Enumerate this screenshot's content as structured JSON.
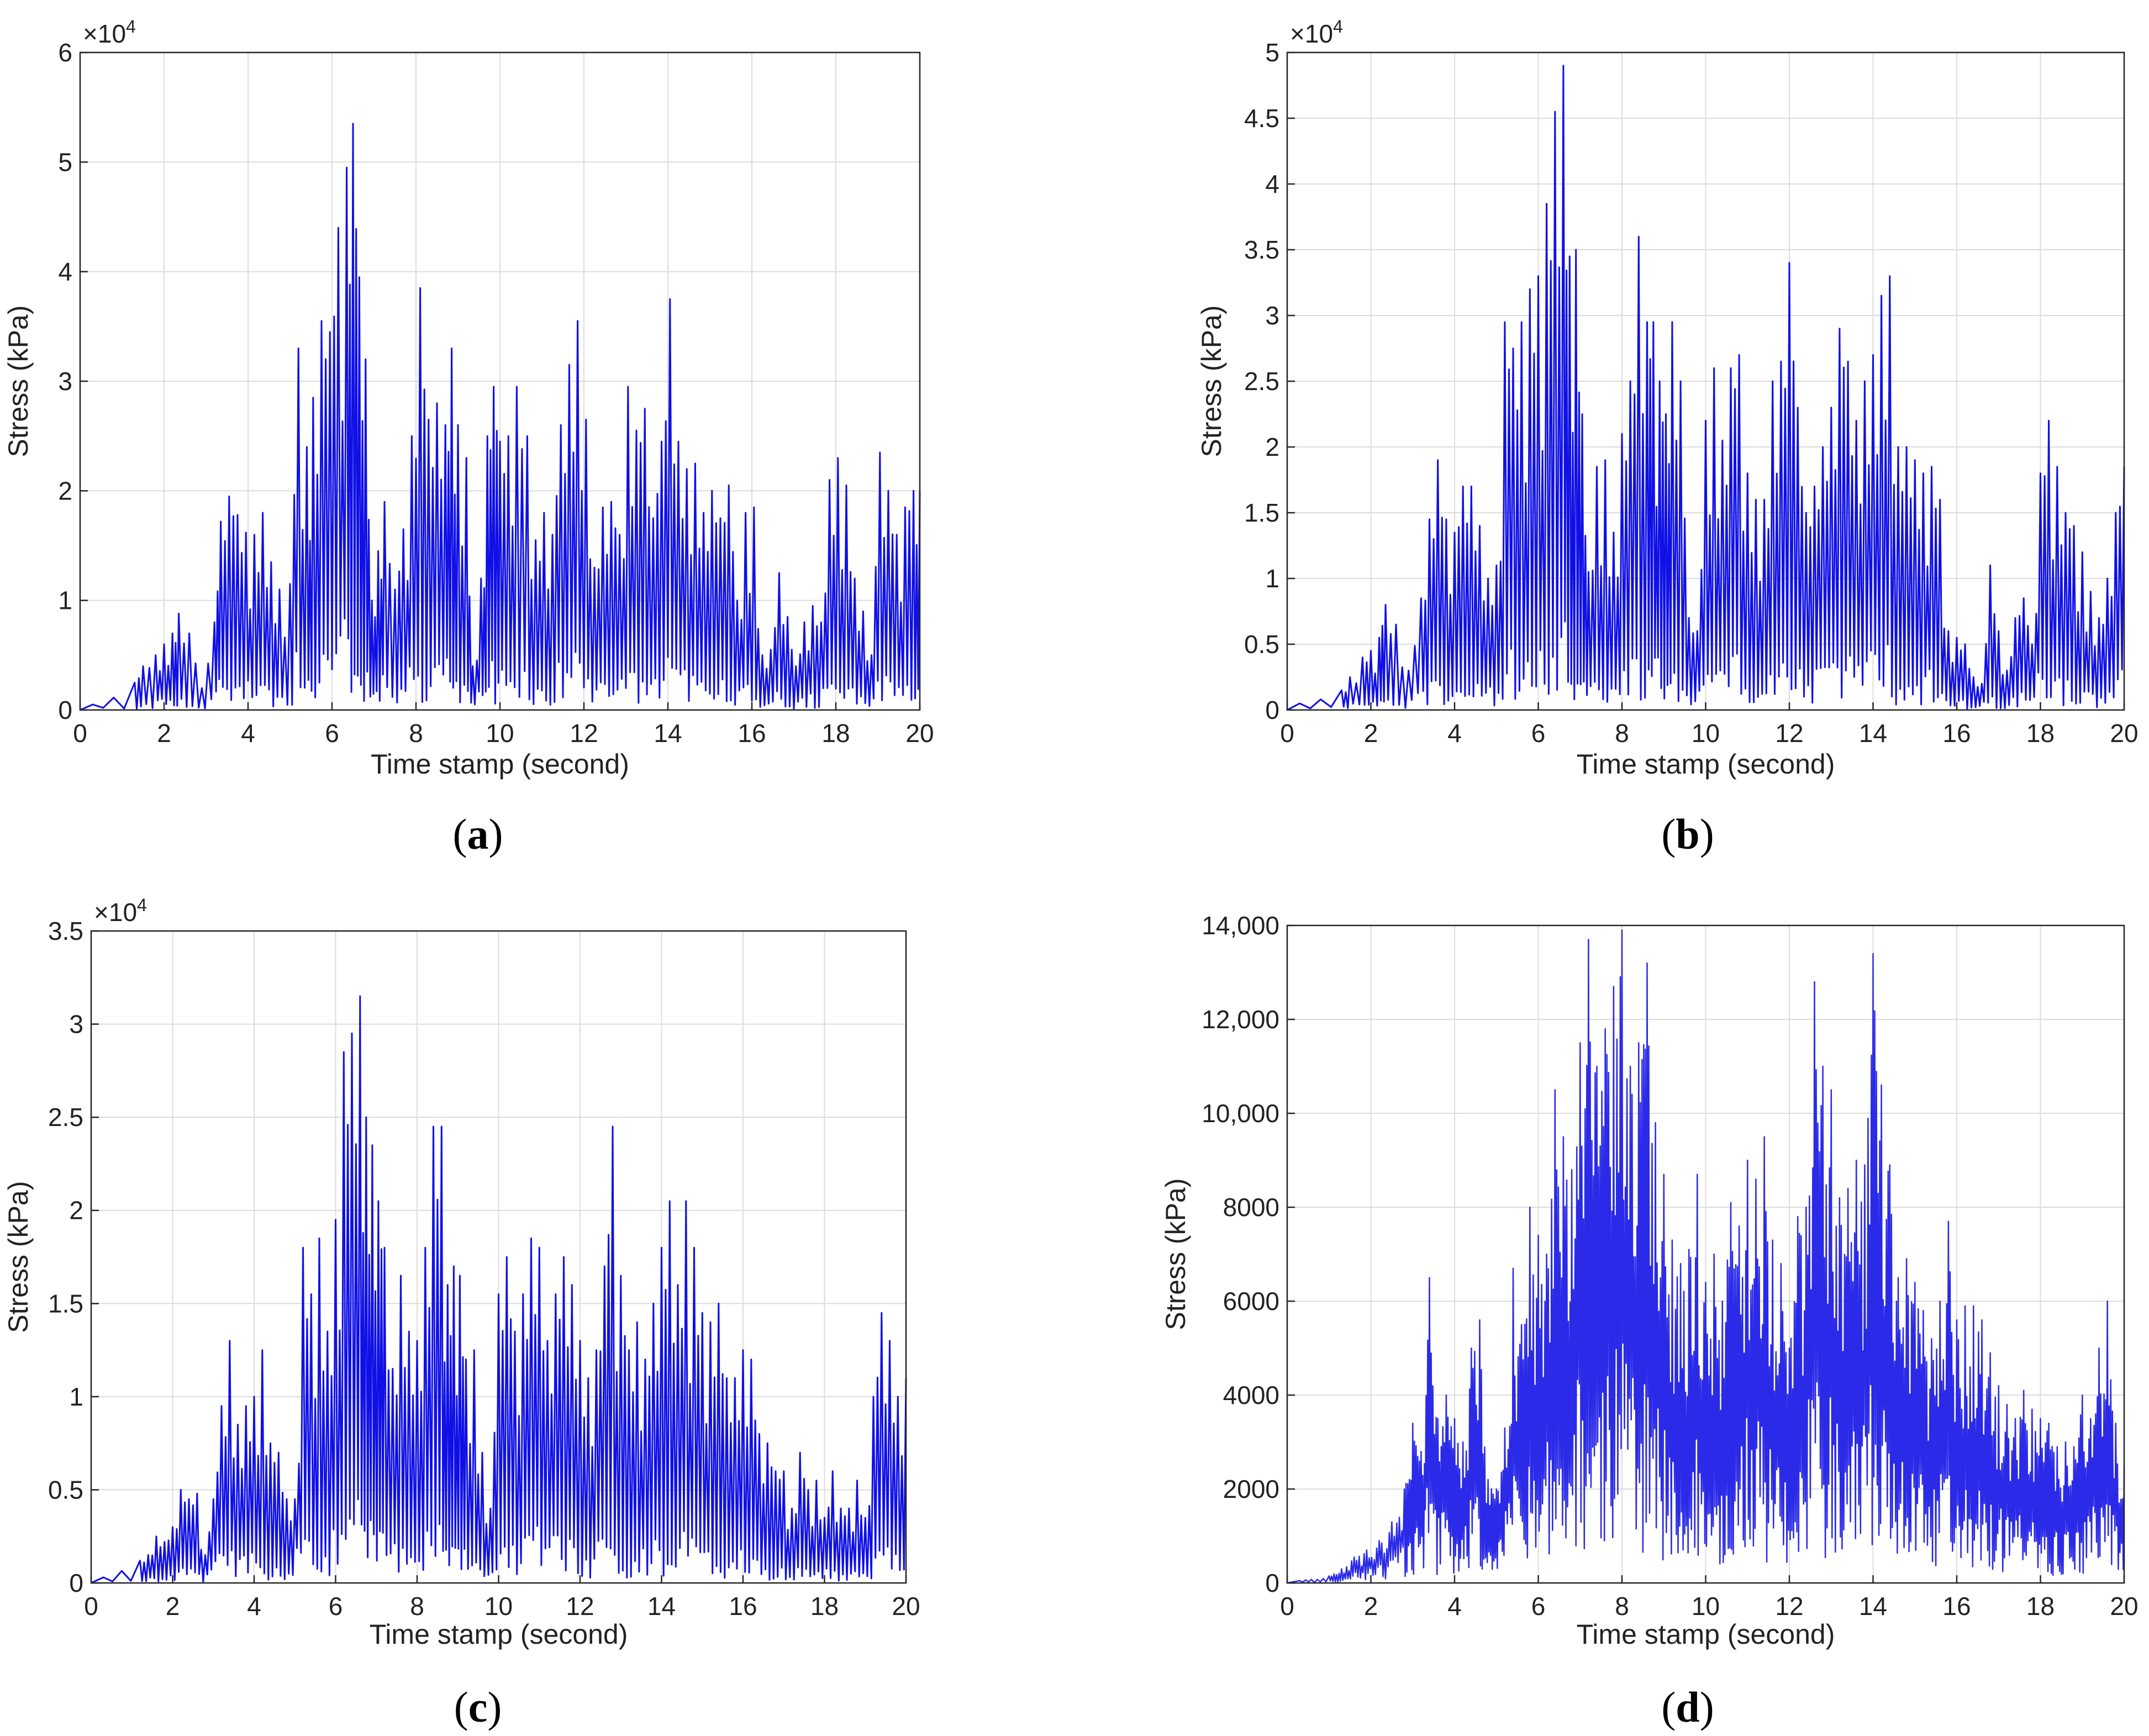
{
  "chart_data": [
    {
      "type": "line",
      "panel_label": "a",
      "xlabel": "Time stamp (second)",
      "ylabel": "Stress (kPa)",
      "exponent_prefix": "×10",
      "exponent_power": "4",
      "xlim": [
        0,
        20
      ],
      "ylim": [
        0,
        6
      ],
      "x_ticks": [
        0,
        2,
        4,
        6,
        8,
        10,
        12,
        14,
        16,
        18,
        20
      ],
      "y_ticks": [
        0,
        1,
        2,
        3,
        4,
        5,
        6
      ],
      "y_tick_labels": [
        "0",
        "1",
        "2",
        "3",
        "4",
        "5",
        "6"
      ],
      "grid": true,
      "color": "#1010e6",
      "series": [
        {
          "name": "Stress",
          "x": [
            0.3,
            1.3,
            1.5,
            1.8,
            2.0,
            2.2,
            2.35,
            2.6,
            2.9,
            3.2,
            3.35,
            3.55,
            3.75,
            3.95,
            4.15,
            4.35,
            4.55,
            4.75,
            5.0,
            5.2,
            5.4,
            5.55,
            5.75,
            5.95,
            6.15,
            6.35,
            6.5,
            6.65,
            6.8,
            6.95,
            7.1,
            7.25,
            7.5,
            7.7,
            7.9,
            8.1,
            8.3,
            8.5,
            8.7,
            8.85,
            9.0,
            9.2,
            9.35,
            9.55,
            9.7,
            9.85,
            10.0,
            10.2,
            10.4,
            10.65,
            10.85,
            11.05,
            11.25,
            11.45,
            11.65,
            11.85,
            12.05,
            12.25,
            12.45,
            12.65,
            12.85,
            13.05,
            13.25,
            13.45,
            13.65,
            13.85,
            14.05,
            14.25,
            14.45,
            14.65,
            14.85,
            15.05,
            15.25,
            15.45,
            15.65,
            15.85,
            16.05,
            16.25,
            16.45,
            16.65,
            16.85,
            17.05,
            17.25,
            17.45,
            17.65,
            17.85,
            18.05,
            18.25,
            18.45,
            18.65,
            18.85,
            19.05,
            19.25,
            19.45,
            19.65,
            19.85,
            20.0
          ],
          "y": [
            0.05,
            0.25,
            0.4,
            0.5,
            0.6,
            0.7,
            0.88,
            0.7,
            0.2,
            0.8,
            1.72,
            1.95,
            1.78,
            1.62,
            1.6,
            1.8,
            1.35,
            1.1,
            1.15,
            3.3,
            2.4,
            2.85,
            3.55,
            3.45,
            4.4,
            4.95,
            5.35,
            3.95,
            3.2,
            1.0,
            1.45,
            1.9,
            1.1,
            1.65,
            2.5,
            3.85,
            2.65,
            2.8,
            2.6,
            3.3,
            2.6,
            2.3,
            0.4,
            1.2,
            2.5,
            2.95,
            2.45,
            2.5,
            2.95,
            2.5,
            1.55,
            1.8,
            1.6,
            2.6,
            3.15,
            3.55,
            2.65,
            1.3,
            1.85,
            1.9,
            1.6,
            2.95,
            2.55,
            2.75,
            1.75,
            2.45,
            3.75,
            2.45,
            2.2,
            2.25,
            1.8,
            2.0,
            1.75,
            2.05,
            1.0,
            1.8,
            1.85,
            0.5,
            0.55,
            1.25,
            0.85,
            0.4,
            0.8,
            0.95,
            0.8,
            2.1,
            2.3,
            2.05,
            1.2,
            0.9,
            0.5,
            2.35,
            2.0,
            1.6,
            1.85,
            2.0,
            2.0
          ],
          "y_ref": "values in units of the exponent multiplier"
        }
      ]
    },
    {
      "type": "line",
      "panel_label": "b",
      "xlabel": "Time stamp (second)",
      "ylabel": "Stress (kPa)",
      "exponent_prefix": "×10",
      "exponent_power": "4",
      "xlim": [
        0,
        20
      ],
      "ylim": [
        0,
        5
      ],
      "x_ticks": [
        0,
        2,
        4,
        6,
        8,
        10,
        12,
        14,
        16,
        18,
        20
      ],
      "y_ticks": [
        0,
        0.5,
        1,
        1.5,
        2,
        2.5,
        3,
        3.5,
        4,
        4.5,
        5
      ],
      "y_tick_labels": [
        "0",
        "0.5",
        "1",
        "1.5",
        "2",
        "2.5",
        "3",
        "3.5",
        "4",
        "4.5",
        "5"
      ],
      "grid": true,
      "color": "#1010e6",
      "series": [
        {
          "name": "Stress",
          "x": [
            0.3,
            1.3,
            1.5,
            1.8,
            2.0,
            2.2,
            2.35,
            2.6,
            2.9,
            3.2,
            3.4,
            3.6,
            3.8,
            4.0,
            4.2,
            4.4,
            4.6,
            4.8,
            5.0,
            5.2,
            5.4,
            5.6,
            5.8,
            6.0,
            6.2,
            6.4,
            6.6,
            6.75,
            6.9,
            7.05,
            7.2,
            7.4,
            7.6,
            7.8,
            8.0,
            8.2,
            8.4,
            8.6,
            8.75,
            8.9,
            9.05,
            9.2,
            9.4,
            9.6,
            9.8,
            10.0,
            10.2,
            10.4,
            10.6,
            10.8,
            11.0,
            11.2,
            11.4,
            11.6,
            11.8,
            12.0,
            12.2,
            12.4,
            12.6,
            12.8,
            13.0,
            13.2,
            13.4,
            13.6,
            13.8,
            14.0,
            14.2,
            14.4,
            14.6,
            14.8,
            15.0,
            15.2,
            15.4,
            15.6,
            15.8,
            16.0,
            16.2,
            16.4,
            16.6,
            16.8,
            17.0,
            17.2,
            17.4,
            17.6,
            17.8,
            18.0,
            18.2,
            18.4,
            18.6,
            18.8,
            19.0,
            19.2,
            19.4,
            19.6,
            19.8,
            20.0
          ],
          "y": [
            0.05,
            0.15,
            0.25,
            0.4,
            0.45,
            0.55,
            0.8,
            0.65,
            0.3,
            0.85,
            1.45,
            1.9,
            1.45,
            1.35,
            1.7,
            1.7,
            1.4,
            1.0,
            1.1,
            2.95,
            2.75,
            2.95,
            3.2,
            3.3,
            3.85,
            4.55,
            4.9,
            3.45,
            3.5,
            2.25,
            1.05,
            1.85,
            1.9,
            1.35,
            2.1,
            2.5,
            3.6,
            2.95,
            2.95,
            2.5,
            2.25,
            2.95,
            2.5,
            0.7,
            0.6,
            2.2,
            2.6,
            2.05,
            2.6,
            2.7,
            1.8,
            1.6,
            1.6,
            2.5,
            2.65,
            3.4,
            2.3,
            1.5,
            1.7,
            2.0,
            2.3,
            2.9,
            2.65,
            2.2,
            2.5,
            2.7,
            3.15,
            3.3,
            2.0,
            2.0,
            1.9,
            1.8,
            1.85,
            1.6,
            0.6,
            0.55,
            0.5,
            0.25,
            0.2,
            1.1,
            0.6,
            0.3,
            0.7,
            0.85,
            0.5,
            1.8,
            2.2,
            1.85,
            1.5,
            1.4,
            1.2,
            0.9,
            0.7,
            1.0,
            1.5,
            1.85
          ],
          "y_ref": "values in units of the exponent multiplier"
        }
      ]
    },
    {
      "type": "line",
      "panel_label": "c",
      "xlabel": "Time stamp (second)",
      "ylabel": "Stress (kPa)",
      "exponent_prefix": "×10",
      "exponent_power": "4",
      "xlim": [
        0,
        20
      ],
      "ylim": [
        0,
        3.5
      ],
      "x_ticks": [
        0,
        2,
        4,
        6,
        8,
        10,
        12,
        14,
        16,
        18,
        20
      ],
      "y_ticks": [
        0,
        0.5,
        1,
        1.5,
        2,
        2.5,
        3,
        3.5
      ],
      "y_tick_labels": [
        "0",
        "0.5",
        "1",
        "1.5",
        "2",
        "2.5",
        "3",
        "3.5"
      ],
      "grid": true,
      "color": "#1010e6",
      "series": [
        {
          "name": "Stress",
          "x": [
            0.3,
            1.2,
            1.4,
            1.6,
            1.8,
            2.0,
            2.2,
            2.4,
            2.6,
            2.8,
            3.0,
            3.2,
            3.4,
            3.6,
            3.8,
            4.0,
            4.2,
            4.4,
            4.6,
            4.8,
            5.0,
            5.2,
            5.4,
            5.6,
            5.8,
            6.0,
            6.2,
            6.4,
            6.6,
            6.75,
            6.9,
            7.05,
            7.2,
            7.4,
            7.6,
            7.8,
            8.0,
            8.2,
            8.4,
            8.6,
            8.75,
            8.9,
            9.05,
            9.2,
            9.4,
            9.6,
            9.8,
            10.0,
            10.2,
            10.4,
            10.6,
            10.8,
            11.0,
            11.2,
            11.4,
            11.6,
            11.8,
            12.0,
            12.2,
            12.4,
            12.6,
            12.8,
            13.0,
            13.2,
            13.4,
            13.6,
            13.8,
            14.0,
            14.2,
            14.4,
            14.6,
            14.8,
            15.0,
            15.2,
            15.4,
            15.6,
            15.8,
            16.0,
            16.2,
            16.4,
            16.6,
            16.8,
            17.0,
            17.2,
            17.4,
            17.6,
            17.8,
            18.0,
            18.2,
            18.4,
            18.6,
            18.8,
            19.0,
            19.2,
            19.4,
            19.6,
            19.8,
            20.0
          ],
          "y": [
            0.03,
            0.12,
            0.15,
            0.25,
            0.22,
            0.3,
            0.5,
            0.45,
            0.48,
            0.15,
            0.45,
            0.95,
            1.3,
            0.85,
            0.95,
            1.0,
            1.25,
            0.75,
            0.7,
            0.45,
            0.45,
            1.8,
            1.55,
            1.85,
            1.35,
            1.95,
            2.85,
            2.95,
            3.15,
            2.5,
            2.35,
            2.05,
            1.8,
            1.15,
            1.65,
            1.35,
            1.3,
            1.8,
            2.45,
            2.45,
            1.6,
            1.7,
            1.65,
            1.2,
            1.25,
            0.7,
            0.4,
            1.55,
            1.75,
            1.35,
            1.55,
            1.85,
            1.8,
            1.3,
            1.55,
            1.75,
            1.6,
            1.3,
            1.1,
            1.25,
            1.7,
            2.45,
            1.65,
            1.25,
            1.4,
            1.2,
            1.5,
            1.8,
            2.05,
            1.6,
            2.05,
            1.8,
            1.45,
            1.4,
            1.5,
            1.1,
            1.1,
            1.25,
            1.2,
            0.8,
            0.75,
            0.6,
            0.6,
            0.4,
            0.7,
            0.5,
            0.55,
            0.35,
            0.6,
            0.4,
            0.4,
            0.55,
            0.35,
            1.0,
            1.45,
            1.3,
            1.0,
            1.1
          ],
          "y_ref": "values in units of the exponent multiplier"
        }
      ]
    },
    {
      "type": "line",
      "panel_label": "d",
      "xlabel": "Time stamp (second)",
      "ylabel": "Stress (kPa)",
      "xlim": [
        0,
        20
      ],
      "ylim": [
        0,
        14000
      ],
      "x_ticks": [
        0,
        2,
        4,
        6,
        8,
        10,
        12,
        14,
        16,
        18,
        20
      ],
      "y_ticks": [
        0,
        2000,
        4000,
        6000,
        8000,
        10000,
        12000,
        14000
      ],
      "y_tick_labels": [
        "0",
        "2000",
        "4000",
        "6000",
        "8000",
        "10,000",
        "12,000",
        "14,000"
      ],
      "grid": true,
      "color": "#2a2ae8",
      "series": [
        {
          "name": "Stress",
          "x": [
            0.3,
            1.0,
            1.3,
            1.6,
            1.9,
            2.2,
            2.5,
            2.8,
            3.0,
            3.2,
            3.4,
            3.6,
            3.8,
            4.0,
            4.2,
            4.4,
            4.6,
            4.8,
            5.0,
            5.2,
            5.4,
            5.6,
            5.8,
            6.0,
            6.2,
            6.4,
            6.6,
            6.8,
            7.0,
            7.2,
            7.4,
            7.6,
            7.8,
            8.0,
            8.2,
            8.4,
            8.6,
            8.8,
            9.0,
            9.2,
            9.4,
            9.6,
            9.8,
            10.0,
            10.2,
            10.4,
            10.6,
            10.8,
            11.0,
            11.2,
            11.4,
            11.6,
            11.8,
            12.0,
            12.2,
            12.4,
            12.6,
            12.8,
            13.0,
            13.2,
            13.4,
            13.6,
            13.8,
            14.0,
            14.2,
            14.4,
            14.6,
            14.8,
            15.0,
            15.2,
            15.4,
            15.6,
            15.8,
            16.0,
            16.2,
            16.4,
            16.6,
            16.8,
            17.0,
            17.2,
            17.4,
            17.6,
            17.8,
            18.0,
            18.2,
            18.4,
            18.6,
            18.8,
            19.0,
            19.2,
            19.4,
            19.6,
            19.8,
            20.0
          ],
          "y": [
            50,
            150,
            300,
            550,
            700,
            900,
            1300,
            2000,
            3400,
            2800,
            6500,
            3500,
            4000,
            3500,
            3000,
            5000,
            5600,
            2200,
            2000,
            3300,
            6700,
            5500,
            8000,
            7400,
            7000,
            10500,
            9500,
            8800,
            11500,
            13700,
            11000,
            11800,
            12700,
            13900,
            11000,
            11500,
            13200,
            9800,
            8700,
            7300,
            6800,
            7100,
            8700,
            6400,
            7000,
            6000,
            8100,
            7600,
            9000,
            8600,
            9500,
            7300,
            6800,
            5000,
            7800,
            8000,
            12800,
            11000,
            10500,
            8200,
            8400,
            9000,
            8900,
            13400,
            10600,
            8900,
            6500,
            6900,
            6400,
            5800,
            5200,
            6000,
            7700,
            5600,
            5900,
            5900,
            5600,
            4900,
            4200,
            3800,
            3500,
            4100,
            3700,
            3500,
            3400,
            2900,
            3000,
            2900,
            4000,
            3500,
            5000,
            6000,
            3400,
            2500
          ],
          "note": "dense oscillation between near-zero troughs and these envelope peaks"
        }
      ]
    }
  ]
}
